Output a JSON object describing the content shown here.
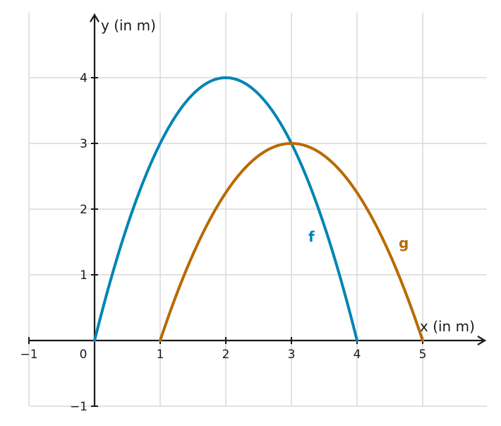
{
  "chart_data": {
    "type": "line",
    "xlabel": "x (in m)",
    "ylabel": "y (in m)",
    "xlim": [
      -1,
      6
    ],
    "ylim": [
      -1,
      5
    ],
    "x_ticks": [
      -1,
      0,
      1,
      2,
      3,
      4,
      5
    ],
    "x_tick_labels": [
      "−1",
      "0",
      "1",
      "2",
      "3",
      "4",
      "5"
    ],
    "y_ticks": [
      -1,
      1,
      2,
      3,
      4
    ],
    "y_tick_labels": [
      "−1",
      "1",
      "2",
      "3",
      "4"
    ],
    "grid": true,
    "series": [
      {
        "name": "f",
        "color": "#0085b5",
        "x": [
          0,
          0.5,
          1,
          1.5,
          2,
          2.5,
          3,
          3.5,
          4
        ],
        "y": [
          0,
          1.75,
          3,
          3.75,
          4,
          3.75,
          3,
          1.75,
          0
        ]
      },
      {
        "name": "g",
        "color": "#b86a00",
        "x": [
          1,
          1.5,
          2,
          2.5,
          3,
          3.5,
          4,
          4.5,
          5
        ],
        "y": [
          0,
          1.3125,
          2.25,
          2.8125,
          3,
          2.8125,
          2.25,
          1.3125,
          0
        ]
      }
    ]
  }
}
